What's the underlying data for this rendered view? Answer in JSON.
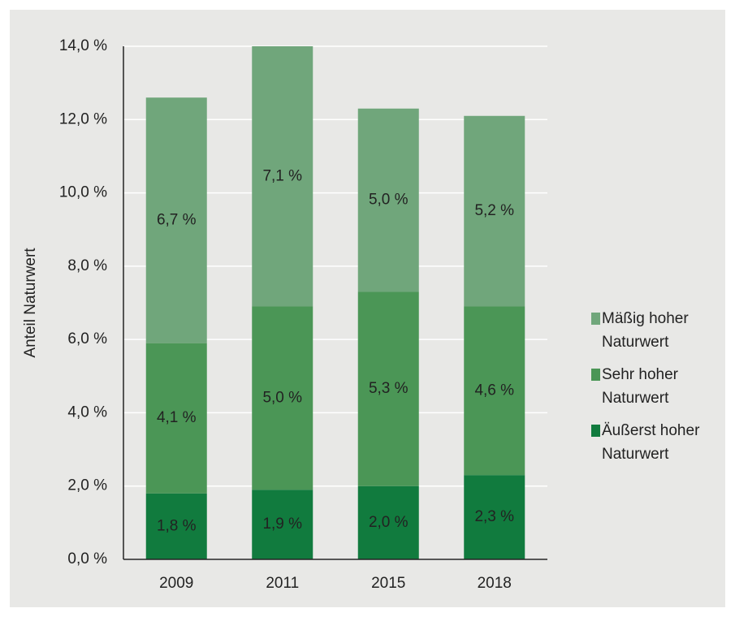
{
  "chart_data": {
    "type": "stacked_bar",
    "y_label": "Anteil Naturwert",
    "categories": [
      "2009",
      "2011",
      "2015",
      "2018"
    ],
    "series": [
      {
        "name": "Äußerst hoher Naturwert",
        "color": "#117b3e",
        "values": [
          1.8,
          1.9,
          2.0,
          2.3
        ],
        "value_labels": [
          "1,8 %",
          "1,9 %",
          "2,0 %",
          "2,3 %"
        ]
      },
      {
        "name": "Sehr hoher Naturwert",
        "color": "#4b9656",
        "values": [
          4.1,
          5.0,
          5.3,
          4.6
        ],
        "value_labels": [
          "4,1 %",
          "5,0 %",
          "5,3 %",
          "4,6 %"
        ]
      },
      {
        "name": "Mäßig hoher Naturwert",
        "color": "#70a67b",
        "values": [
          6.7,
          7.1,
          5.0,
          5.2
        ],
        "value_labels": [
          "6,7 %",
          "7,1 %",
          "5,0 %",
          "5,2 %"
        ]
      }
    ],
    "ylim": [
      0,
      14
    ],
    "yticks": [
      {
        "value": 0,
        "label": "0,0 %"
      },
      {
        "value": 2,
        "label": "2,0 %"
      },
      {
        "value": 4,
        "label": "4,0 %"
      },
      {
        "value": 6,
        "label": "6,0 %"
      },
      {
        "value": 8,
        "label": "8,0 %"
      },
      {
        "value": 10,
        "label": "10,0 %"
      },
      {
        "value": 12,
        "label": "12,0 %"
      },
      {
        "value": 14,
        "label": "14,0 %"
      }
    ],
    "grid": true
  }
}
